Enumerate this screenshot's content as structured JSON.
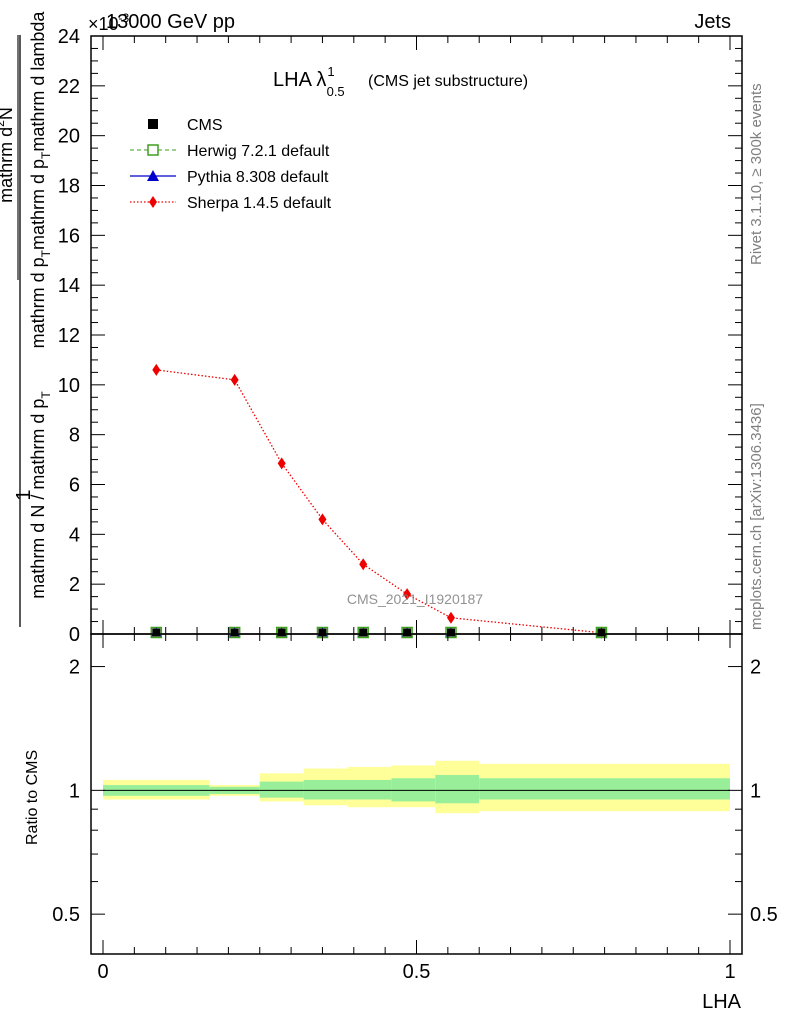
{
  "header": {
    "left": "13000 GeV pp",
    "right": "Jets",
    "exponent": "×10",
    "exponent_power": "-3"
  },
  "side_labels": {
    "rivet": "Rivet 3.1.10, ≥ 300k events",
    "mcplots": "mcplots.cern.ch [arXiv:1306.3436]"
  },
  "watermark": "CMS_2021_I1920187",
  "colors": {
    "cms": "#000000",
    "herwig": "#3f9f1f",
    "pythia": "#0000cc",
    "sherpa": "#ee0000",
    "band_inner": "#99ee99",
    "band_outer": "#ffff99"
  },
  "chart_data": [
    {
      "type": "line",
      "title": "LHA λ",
      "title_sup": "1",
      "title_sub": "0.5",
      "subtitle": "(CMS jet substructure)",
      "ylabel": "1 / (mathrm d N / mathrm d p_T) mathrm d p_T mathrm d lambda mathrm d²N",
      "ylabel_num": "mathrm d²N",
      "ylabel_num_parts": [
        "mathrm d",
        "2",
        "N"
      ],
      "ylabel_den": "mathrm d p_T mathrm d p_T mathrm d lambda",
      "ylabel_den_parts": [
        "mathrm d p",
        "T",
        "mathrm d p",
        "T",
        "mathrm d lambda"
      ],
      "ylabel_one": "1",
      "ylabel_mid": "mathrm d N / mathrm d p",
      "ylabel_mid_parts": [
        "mathrm d N / mathrm d p",
        "T"
      ],
      "xlim": [
        0,
        1
      ],
      "ylim": [
        0,
        24
      ],
      "y_ticks": [
        0,
        2,
        4,
        6,
        8,
        10,
        12,
        14,
        16,
        18,
        20,
        22,
        24
      ],
      "y_tick_labels": [
        "0",
        "2",
        "4",
        "6",
        "8",
        "10",
        "12",
        "14",
        "16",
        "18",
        "20",
        "22",
        "24"
      ],
      "legend": [
        {
          "name": "CMS",
          "marker": "square"
        },
        {
          "name": "Herwig 7.2.1 default",
          "marker": "open-square"
        },
        {
          "name": "Pythia 8.308 default",
          "marker": "triangle"
        },
        {
          "name": "Sherpa 1.4.5 default",
          "marker": "diamond"
        }
      ],
      "x": [
        0.085,
        0.21,
        0.285,
        0.35,
        0.415,
        0.485,
        0.555,
        0.795
      ],
      "series": [
        {
          "name": "CMS",
          "values": [
            0.02,
            0.02,
            0.02,
            0.02,
            0.02,
            0.02,
            0.02,
            0.02
          ]
        },
        {
          "name": "Herwig 7.2.1 default",
          "values": [
            0.02,
            0.02,
            0.02,
            0.02,
            0.02,
            0.02,
            0.02,
            0.02
          ]
        },
        {
          "name": "Pythia 8.308 default",
          "values": [
            0.02,
            0.02,
            0.02,
            0.02,
            0.02,
            0.02,
            0.02,
            0.02
          ]
        },
        {
          "name": "Sherpa 1.4.5 default",
          "values": [
            10.6,
            10.2,
            6.85,
            4.6,
            2.8,
            1.6,
            0.65,
            0.05
          ],
          "errors": [
            0.15,
            0.2,
            0.15,
            0.1,
            0.08,
            0.06,
            0.05,
            0.02
          ]
        }
      ]
    },
    {
      "type": "line",
      "title": "Ratio",
      "ylabel": "Ratio to CMS",
      "xlabel": "LHA",
      "xlim": [
        0,
        1
      ],
      "ylim": [
        0.4,
        2.4
      ],
      "y_ticks": [
        0.5,
        1,
        2
      ],
      "y_tick_labels": [
        "0.5",
        "1",
        "2"
      ],
      "x_ticks": [
        0,
        0.5,
        1
      ],
      "x_tick_labels": [
        "0",
        "0.5",
        "1"
      ],
      "bins": [
        [
          0,
          0.17
        ],
        [
          0.17,
          0.25
        ],
        [
          0.25,
          0.32
        ],
        [
          0.32,
          0.39
        ],
        [
          0.39,
          0.46
        ],
        [
          0.46,
          0.53
        ],
        [
          0.53,
          0.6
        ],
        [
          0.6,
          1.0
        ]
      ],
      "band_inner": [
        [
          0.97,
          1.03
        ],
        [
          0.98,
          1.02
        ],
        [
          0.96,
          1.05
        ],
        [
          0.95,
          1.06
        ],
        [
          0.95,
          1.06
        ],
        [
          0.94,
          1.07
        ],
        [
          0.93,
          1.09
        ],
        [
          0.95,
          1.07
        ]
      ],
      "band_outer": [
        [
          0.95,
          1.06
        ],
        [
          0.97,
          1.03
        ],
        [
          0.94,
          1.1
        ],
        [
          0.92,
          1.13
        ],
        [
          0.91,
          1.14
        ],
        [
          0.91,
          1.15
        ],
        [
          0.88,
          1.18
        ],
        [
          0.89,
          1.16
        ]
      ],
      "reference": 1.0
    }
  ]
}
